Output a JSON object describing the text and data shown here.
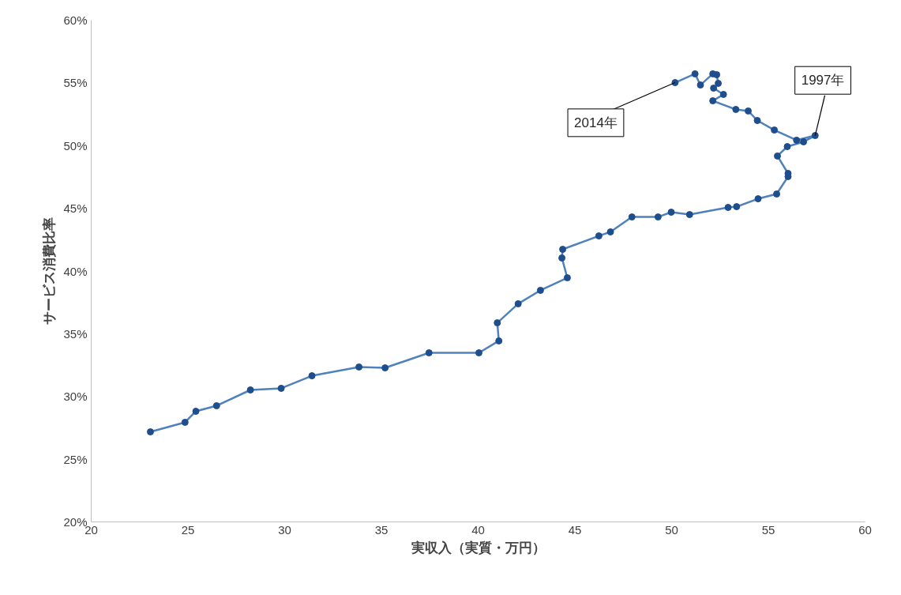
{
  "chart_data": {
    "type": "line",
    "xlabel": "実収入（実質・万円）",
    "ylabel": "サービス消費比率",
    "x": [
      23.06,
      24.85,
      25.41,
      26.48,
      28.23,
      29.82,
      31.41,
      33.84,
      35.19,
      37.46,
      40.04,
      41.07,
      40.99,
      42.07,
      43.22,
      44.61,
      44.33,
      44.37,
      46.24,
      46.84,
      47.95,
      49.3,
      49.98,
      50.93,
      52.92,
      53.36,
      54.47,
      55.43,
      56.02,
      56.02,
      55.47,
      55.98,
      56.82,
      57.42,
      56.46,
      55.31,
      54.43,
      53.96,
      53.32,
      52.13,
      52.68,
      52.17,
      52.41,
      52.33,
      52.13,
      51.49,
      51.21,
      50.18
    ],
    "series": [
      {
        "color": "#1f4e8c",
        "values": [
          27.18,
          27.94,
          28.82,
          29.26,
          30.52,
          30.65,
          31.65,
          32.35,
          32.28,
          33.48,
          33.48,
          34.43,
          35.87,
          37.39,
          38.46,
          39.46,
          41.04,
          41.73,
          42.8,
          43.12,
          44.31,
          44.31,
          44.69,
          44.5,
          45.07,
          45.13,
          45.76,
          46.14,
          47.53,
          47.78,
          49.17,
          49.92,
          50.3,
          50.8,
          50.43,
          51.24,
          52.0,
          52.76,
          52.88,
          53.57,
          54.08,
          54.58,
          54.96,
          55.65,
          55.72,
          54.83,
          55.72,
          55.02
        ]
      }
    ],
    "marker": "circle",
    "line_style": "solid",
    "grid": false,
    "xlim": [
      20,
      60
    ],
    "xticks": [
      20,
      25,
      30,
      35,
      40,
      45,
      50,
      55,
      60
    ],
    "ylim": [
      20,
      60
    ],
    "yticks": [
      {
        "value": 20,
        "label": "20%"
      },
      {
        "value": 25,
        "label": "25%"
      },
      {
        "value": 30,
        "label": "30%"
      },
      {
        "value": 35,
        "label": "35%"
      },
      {
        "value": 40,
        "label": "40%"
      },
      {
        "value": 45,
        "label": "45%"
      },
      {
        "value": 50,
        "label": "50%"
      },
      {
        "value": 55,
        "label": "55%"
      },
      {
        "value": 60,
        "label": "60%"
      }
    ],
    "annotations": [
      {
        "text": "1997年",
        "x": 57.42,
        "y": 50.8
      },
      {
        "text": "2014年",
        "x": 50.18,
        "y": 55.02
      }
    ]
  }
}
